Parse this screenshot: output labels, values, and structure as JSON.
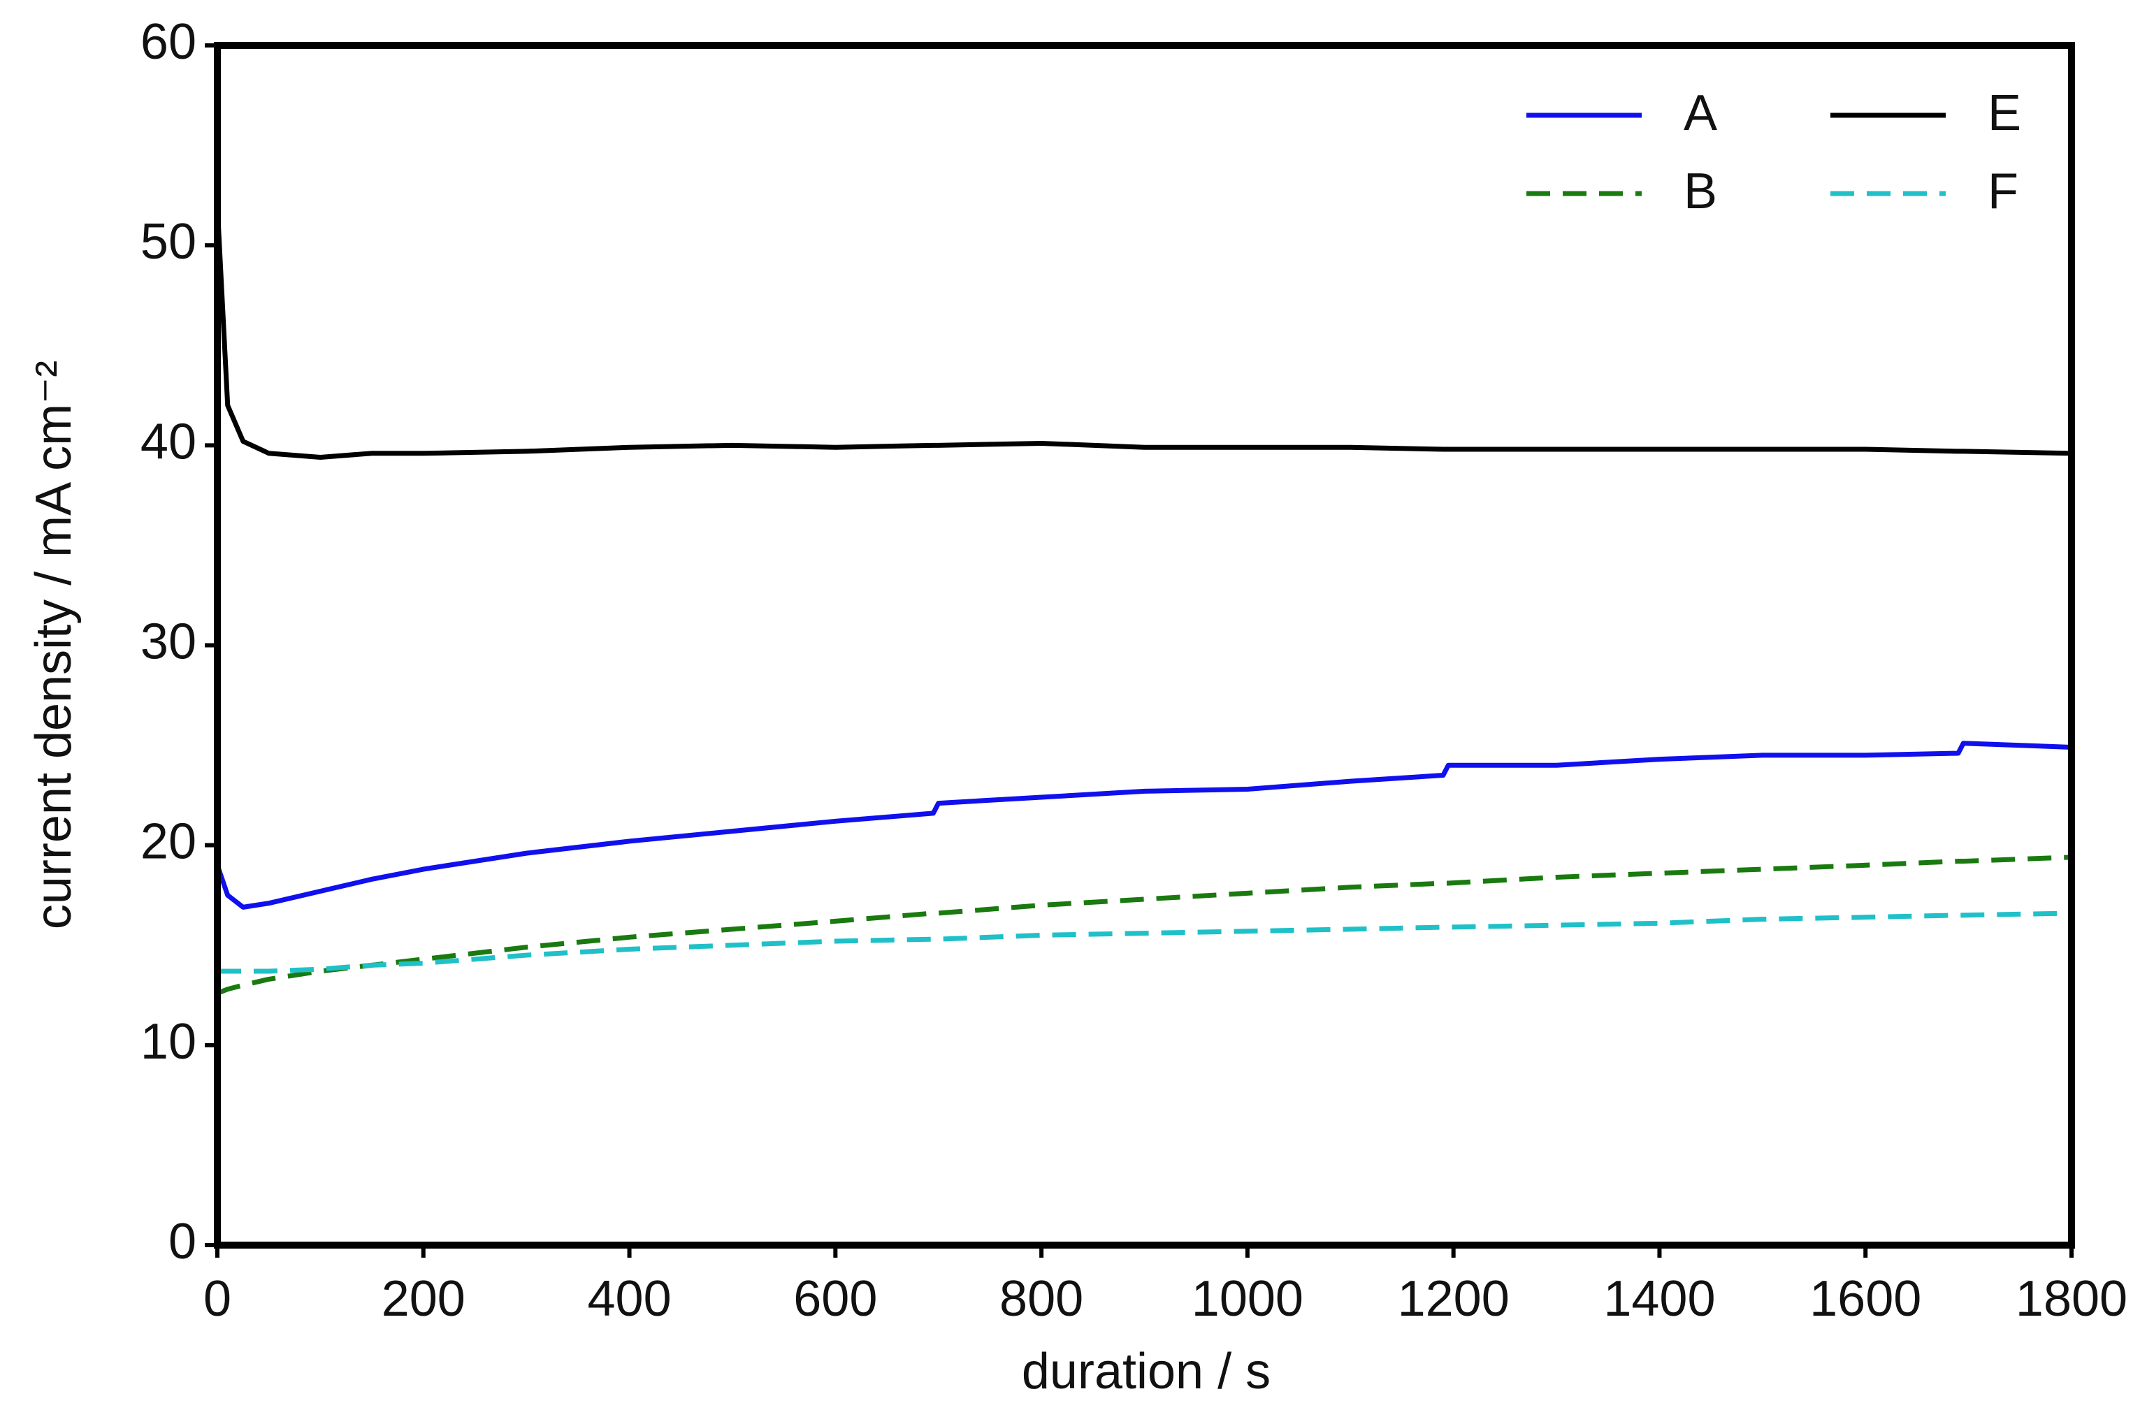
{
  "chart_data": {
    "type": "line",
    "xlabel": "duration / s",
    "ylabel": "current density / mA cm⁻²",
    "x": [
      0,
      10,
      25,
      50,
      100,
      150,
      200,
      300,
      400,
      500,
      600,
      695,
      700,
      800,
      900,
      1000,
      1100,
      1190,
      1195,
      1300,
      1400,
      1500,
      1600,
      1690,
      1695,
      1800
    ],
    "series": [
      {
        "name": "A",
        "color": "#1010ee",
        "linestyle": "solid",
        "values": [
          19,
          17.5,
          16.9,
          17.1,
          17.7,
          18.3,
          18.8,
          19.6,
          20.2,
          20.7,
          21.2,
          21.6,
          22.1,
          22.4,
          22.7,
          22.8,
          23.2,
          23.5,
          24.0,
          24.0,
          24.3,
          24.5,
          24.5,
          24.6,
          25.1,
          24.9
        ]
      },
      {
        "name": "B",
        "color": "#1a7a10",
        "linestyle": "dashed",
        "values": [
          12.6,
          12.8,
          13.0,
          13.3,
          13.7,
          14.0,
          14.3,
          14.9,
          15.4,
          15.8,
          16.2,
          16.6,
          16.6,
          17.0,
          17.3,
          17.6,
          17.9,
          18.1,
          18.1,
          18.4,
          18.6,
          18.8,
          19.0,
          19.2,
          19.2,
          19.4
        ]
      },
      {
        "name": "E",
        "color": "#000000",
        "linestyle": "solid",
        "values": [
          52,
          42,
          40.2,
          39.6,
          39.4,
          39.6,
          39.6,
          39.7,
          39.9,
          40.0,
          39.9,
          40.0,
          40.0,
          40.1,
          39.9,
          39.9,
          39.9,
          39.8,
          39.8,
          39.8,
          39.8,
          39.8,
          39.8,
          39.7,
          39.7,
          39.6
        ]
      },
      {
        "name": "F",
        "color": "#20c0c8",
        "linestyle": "dashed",
        "values": [
          13.7,
          13.7,
          13.7,
          13.7,
          13.8,
          14.0,
          14.1,
          14.5,
          14.8,
          15.0,
          15.2,
          15.3,
          15.3,
          15.5,
          15.6,
          15.7,
          15.8,
          15.9,
          15.9,
          16.0,
          16.1,
          16.3,
          16.4,
          16.5,
          16.5,
          16.6
        ]
      }
    ],
    "xlim": [
      0,
      1800
    ],
    "xticks": [
      0,
      200,
      400,
      600,
      800,
      1000,
      1200,
      1400,
      1600,
      1800
    ],
    "ylim": [
      0,
      60
    ],
    "yticks": [
      0,
      10,
      20,
      30,
      40,
      50,
      60
    ],
    "grid": false,
    "legend": "upper right"
  }
}
